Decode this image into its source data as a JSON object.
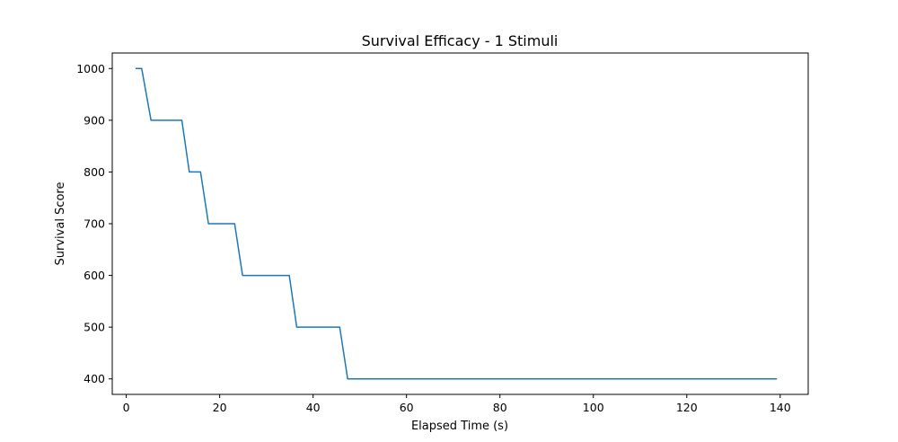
{
  "chart_data": {
    "type": "line",
    "title": "Survival Efficacy - 1 Stimuli",
    "xlabel": "Elapsed Time (s)",
    "ylabel": "Survival Score",
    "xlim": [
      -3,
      146
    ],
    "ylim": [
      370,
      1030
    ],
    "xticks": [
      0,
      20,
      40,
      60,
      80,
      100,
      120,
      140
    ],
    "yticks": [
      400,
      500,
      600,
      700,
      800,
      900,
      1000
    ],
    "grid": false,
    "series": [
      {
        "color": "#1f77b4",
        "points": [
          [
            2.0,
            1000
          ],
          [
            3.3,
            1000
          ],
          [
            5.3,
            900
          ],
          [
            11.9,
            900
          ],
          [
            13.5,
            800
          ],
          [
            15.9,
            800
          ],
          [
            17.6,
            700
          ],
          [
            23.2,
            700
          ],
          [
            24.9,
            600
          ],
          [
            34.9,
            600
          ],
          [
            36.5,
            500
          ],
          [
            45.7,
            500
          ],
          [
            47.4,
            400
          ],
          [
            139.3,
            400
          ]
        ]
      }
    ]
  }
}
